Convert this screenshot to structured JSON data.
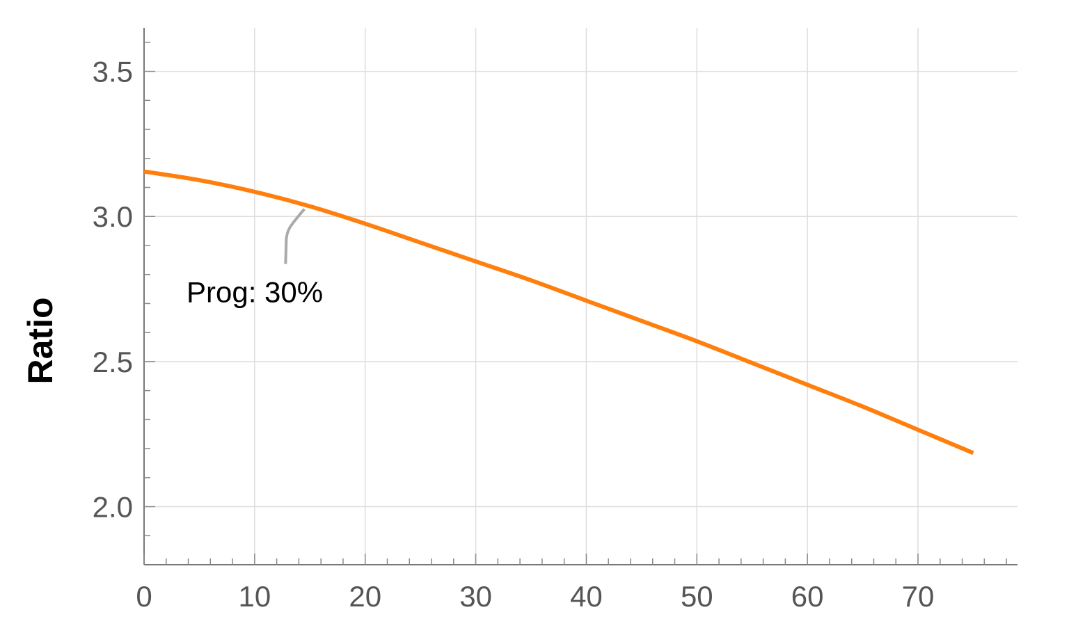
{
  "chart_data": {
    "type": "line",
    "xlabel": "",
    "ylabel": "Ratio",
    "xlim": [
      0,
      79
    ],
    "ylim": [
      1.8,
      3.65
    ],
    "grid": true,
    "xticks": [
      0,
      10,
      20,
      30,
      40,
      50,
      60,
      70
    ],
    "xtick_labels": [
      "0",
      "10",
      "20",
      "30",
      "40",
      "50",
      "60",
      "70"
    ],
    "yticks": [
      2.0,
      2.5,
      3.0,
      3.5
    ],
    "ytick_labels": [
      "2.0",
      "2.5",
      "3.0",
      "3.5"
    ],
    "series": [
      {
        "color": "#ff7f0e",
        "x": [
          0,
          5,
          10,
          15,
          20,
          25,
          30,
          35,
          40,
          45,
          50,
          55,
          60,
          65,
          70,
          75
        ],
        "y": [
          3.155,
          3.125,
          3.085,
          3.035,
          2.975,
          2.91,
          2.845,
          2.78,
          2.71,
          2.64,
          2.57,
          2.495,
          2.42,
          2.345,
          2.265,
          2.185
        ]
      }
    ],
    "annotations": [
      {
        "text": "Prog: 30%",
        "x": 14.5,
        "y": 3.04
      }
    ]
  }
}
